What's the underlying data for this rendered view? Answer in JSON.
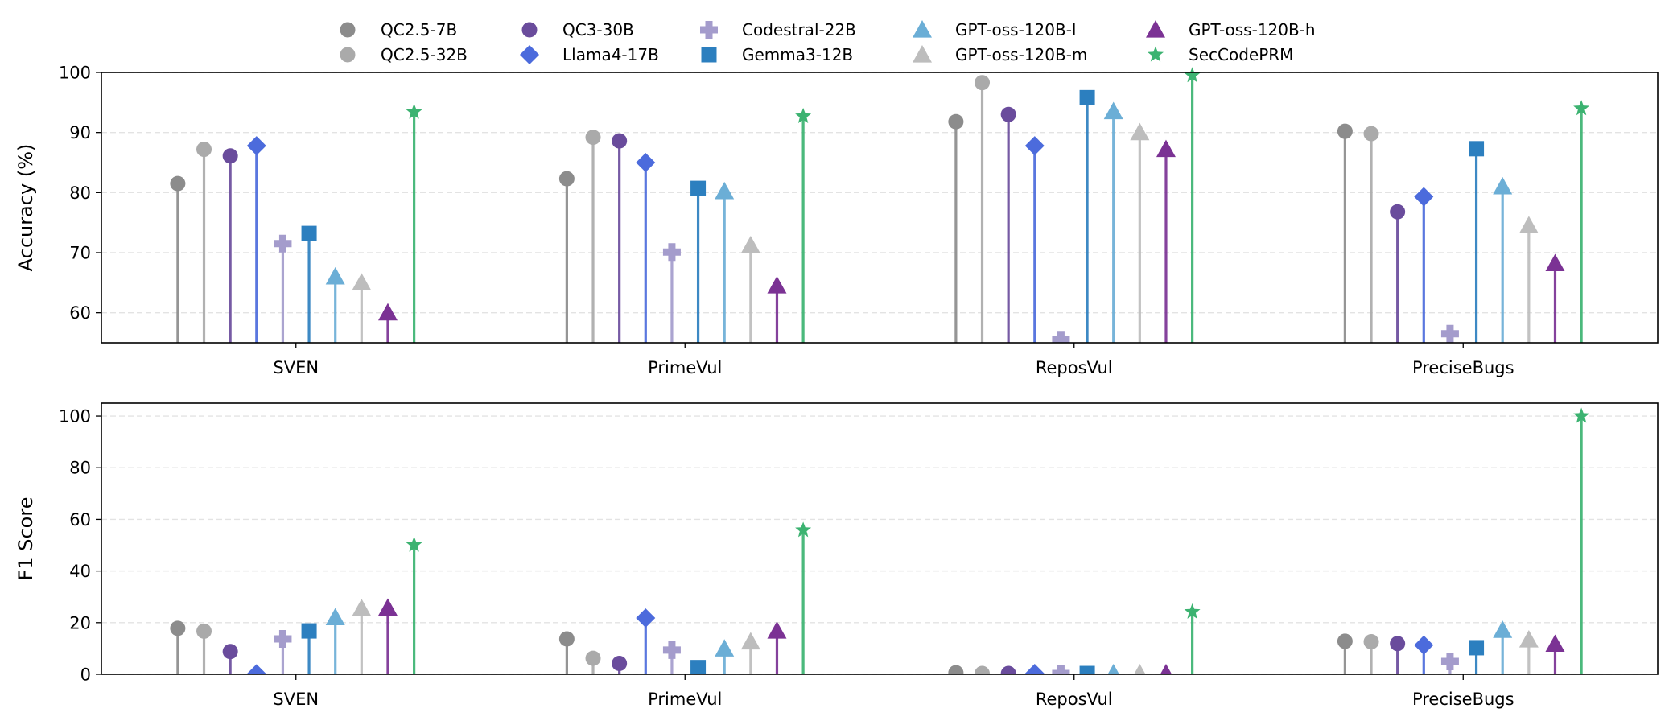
{
  "chart_data": {
    "type": "lollipop",
    "categories": [
      "SVEN",
      "PrimeVul",
      "ReposVul",
      "PreciseBugs"
    ],
    "models": [
      {
        "name": "QC2.5-7B",
        "color": "#8c8c8c",
        "marker": "circle"
      },
      {
        "name": "QC2.5-32B",
        "color": "#aaaaaa",
        "marker": "circle"
      },
      {
        "name": "QC3-30B",
        "color": "#6a4c9c",
        "marker": "circle"
      },
      {
        "name": "Llama4-17B",
        "color": "#4c6bdc",
        "marker": "diamond"
      },
      {
        "name": "Codestral-22B",
        "color": "#a49ccc",
        "marker": "plus"
      },
      {
        "name": "Gemma3-12B",
        "color": "#2c7fbf",
        "marker": "square"
      },
      {
        "name": "GPT-oss-120B-l",
        "color": "#6baed6",
        "marker": "triangle"
      },
      {
        "name": "GPT-oss-120B-m",
        "color": "#bdbdbd",
        "marker": "triangle"
      },
      {
        "name": "GPT-oss-120B-h",
        "color": "#7b3294",
        "marker": "triangle"
      },
      {
        "name": "SecCodePRM",
        "color": "#3cb371",
        "marker": "star"
      }
    ],
    "panels": [
      {
        "ylabel": "Accuracy (%)",
        "ylim": [
          55,
          100
        ],
        "yticks": [
          60,
          70,
          80,
          90,
          100
        ],
        "grid": true,
        "series": [
          {
            "name": "QC2.5-7B",
            "values": [
              81.5,
              82.3,
              91.8,
              90.2
            ]
          },
          {
            "name": "QC2.5-32B",
            "values": [
              87.2,
              89.2,
              98.3,
              89.8
            ]
          },
          {
            "name": "QC3-30B",
            "values": [
              86.1,
              88.6,
              93.0,
              76.8
            ]
          },
          {
            "name": "Llama4-17B",
            "values": [
              87.8,
              85.0,
              87.8,
              79.3
            ]
          },
          {
            "name": "Codestral-22B",
            "values": [
              71.5,
              70.1,
              55.5,
              56.5
            ]
          },
          {
            "name": "Gemma3-12B",
            "values": [
              73.2,
              80.7,
              95.8,
              87.3
            ]
          },
          {
            "name": "GPT-oss-120B-l",
            "values": [
              66.0,
              80.2,
              93.5,
              81.0
            ]
          },
          {
            "name": "GPT-oss-120B-m",
            "values": [
              65.0,
              71.2,
              90.0,
              74.5
            ]
          },
          {
            "name": "GPT-oss-120B-h",
            "values": [
              60.0,
              64.5,
              87.2,
              68.2
            ]
          },
          {
            "name": "SecCodePRM",
            "values": [
              93.4,
              92.7,
              99.5,
              94.0
            ]
          }
        ]
      },
      {
        "ylabel": "F1 Score",
        "ylim": [
          0,
          105
        ],
        "yticks": [
          0,
          20,
          40,
          60,
          80,
          100
        ],
        "grid": true,
        "series": [
          {
            "name": "QC2.5-7B",
            "values": [
              17.8,
              13.7,
              0.6,
              12.8
            ]
          },
          {
            "name": "QC2.5-32B",
            "values": [
              16.7,
              6.2,
              0.3,
              12.6
            ]
          },
          {
            "name": "QC3-30B",
            "values": [
              8.8,
              4.2,
              0.3,
              11.9
            ]
          },
          {
            "name": "Llama4-17B",
            "values": [
              0.2,
              21.8,
              0.3,
              11.3
            ]
          },
          {
            "name": "Codestral-22B",
            "values": [
              13.7,
              9.4,
              0.3,
              5.0
            ]
          },
          {
            "name": "Gemma3-12B",
            "values": [
              16.8,
              2.6,
              0.3,
              10.3
            ]
          },
          {
            "name": "GPT-oss-120B-l",
            "values": [
              22.0,
              9.9,
              0.3,
              17.1
            ]
          },
          {
            "name": "GPT-oss-120B-m",
            "values": [
              25.5,
              12.6,
              0.3,
              13.4
            ]
          },
          {
            "name": "GPT-oss-120B-h",
            "values": [
              25.7,
              16.8,
              0.3,
              11.7
            ]
          },
          {
            "name": "SecCodePRM",
            "values": [
              50.1,
              55.8,
              24.2,
              100.0
            ]
          }
        ]
      }
    ],
    "legend": {
      "location": "top-center",
      "columns": 5
    }
  }
}
